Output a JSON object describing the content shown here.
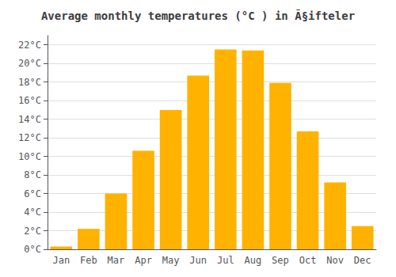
{
  "chart_data": {
    "type": "bar",
    "title": "Average monthly temperatures (°C ) in Ã§ifteler",
    "categories": [
      "Jan",
      "Feb",
      "Mar",
      "Apr",
      "May",
      "Jun",
      "Jul",
      "Aug",
      "Sep",
      "Oct",
      "Nov",
      "Dec"
    ],
    "values": [
      0.3,
      2.2,
      6.0,
      10.6,
      15.0,
      18.7,
      21.5,
      21.4,
      17.9,
      12.7,
      7.2,
      2.5
    ],
    "color": "#FFB300",
    "ylim": [
      0,
      23
    ],
    "yticks": [
      {
        "value": 0,
        "label": "0°C"
      },
      {
        "value": 2,
        "label": "2°C"
      },
      {
        "value": 4,
        "label": "4°C"
      },
      {
        "value": 6,
        "label": "6°C"
      },
      {
        "value": 8,
        "label": "8°C"
      },
      {
        "value": 10,
        "label": "10°C"
      },
      {
        "value": 12,
        "label": "12°C"
      },
      {
        "value": 14,
        "label": "14°C"
      },
      {
        "value": 16,
        "label": "16°C"
      },
      {
        "value": 18,
        "label": "18°C"
      },
      {
        "value": 20,
        "label": "20°C"
      },
      {
        "value": 22,
        "label": "22°C"
      }
    ],
    "grid": true
  }
}
